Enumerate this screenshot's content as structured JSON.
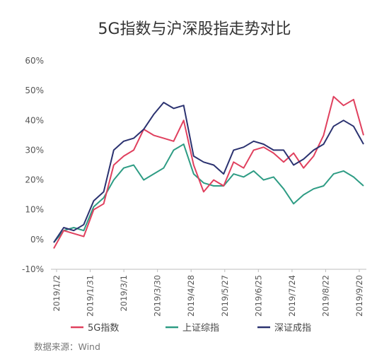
{
  "chart_data": {
    "type": "line",
    "title": "5G指数与沪深股指走势对比",
    "y_ticks": [
      "60%",
      "50%",
      "40%",
      "30%",
      "20%",
      "10%",
      "0%",
      "-10%"
    ],
    "ylim": [
      -10,
      60
    ],
    "grid": false,
    "legend_position": "bottom",
    "x_ticks": [
      "2019/1/2",
      "2019/1/31",
      "2019/3/1",
      "2019/3/30",
      "2019/4/28",
      "2019/5/27",
      "2019/6/25",
      "2019/7/24",
      "2019/8/22",
      "2019/9/20"
    ],
    "x": [
      "2019/1/2",
      "2019/1/11",
      "2019/1/21",
      "2019/1/31",
      "2019/2/12",
      "2019/2/22",
      "2019/3/1",
      "2019/3/8",
      "2019/3/15",
      "2019/3/22",
      "2019/3/30",
      "2019/4/4",
      "2019/4/12",
      "2019/4/19",
      "2019/4/28",
      "2019/5/8",
      "2019/5/17",
      "2019/5/27",
      "2019/6/5",
      "2019/6/14",
      "2019/6/25",
      "2019/7/3",
      "2019/7/12",
      "2019/7/24",
      "2019/8/2",
      "2019/8/12",
      "2019/8/22",
      "2019/8/30",
      "2019/9/6",
      "2019/9/13",
      "2019/9/20",
      "2019/9/27"
    ],
    "series": [
      {
        "name": "5G指数",
        "color": "#e0405e",
        "values": [
          -3,
          3,
          2,
          1,
          10,
          12,
          25,
          28,
          30,
          37,
          35,
          34,
          33,
          40,
          25,
          16,
          20,
          18,
          26,
          24,
          30,
          31,
          29,
          26,
          29,
          24,
          28,
          35,
          48,
          45,
          47,
          35
        ]
      },
      {
        "name": "上证综指",
        "color": "#2e9c84",
        "values": [
          -1,
          3,
          4,
          3,
          11,
          14,
          20,
          24,
          25,
          20,
          22,
          24,
          30,
          32,
          22,
          19,
          18,
          18,
          22,
          21,
          23,
          20,
          21,
          17,
          12,
          15,
          17,
          18,
          22,
          23,
          21,
          18
        ]
      },
      {
        "name": "深证成指",
        "color": "#2b3270",
        "values": [
          -1,
          4,
          3,
          5,
          13,
          16,
          30,
          33,
          34,
          37,
          42,
          46,
          44,
          45,
          28,
          26,
          25,
          22,
          30,
          31,
          33,
          32,
          30,
          30,
          25,
          27,
          30,
          32,
          38,
          40,
          38,
          32
        ]
      }
    ]
  },
  "source": "数据来源：Wind"
}
